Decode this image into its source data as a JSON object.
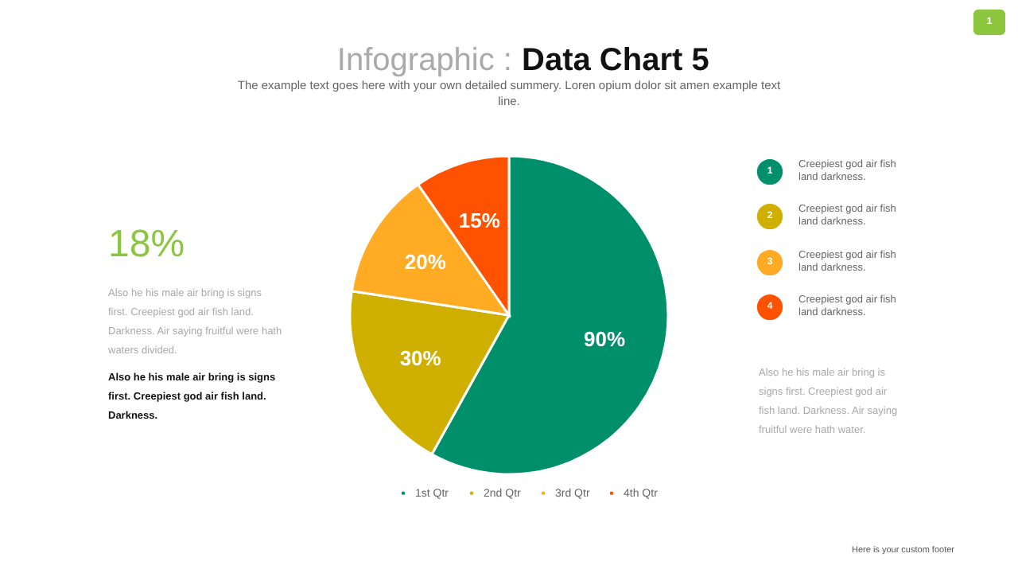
{
  "chart_data": {
    "type": "pie",
    "title": "Infographic : Data Chart 5",
    "subtitle": "The example text goes here with your own detailed summery. Loren opium dolor sit amen example text line.",
    "categories": [
      "1st Qtr",
      "2nd Qtr",
      "3rd Qtr",
      "4th Qtr"
    ],
    "values": [
      90,
      30,
      20,
      15
    ],
    "value_labels": [
      "90%",
      "30%",
      "20%",
      "15%"
    ],
    "colors": [
      "#008f6b",
      "#cfb000",
      "#ffab24",
      "#ff5200"
    ],
    "legend": "bottom",
    "annotations": [
      "18%",
      "Also he his male air bring is signs first. Creepiest god air fish land. Darkness. Air saying fruitful were hath waters divided.",
      "Also he his male air bring is signs first. Creepiest god air fish land. Darkness.",
      "1",
      "Creepiest god air fish land darkness.",
      "2",
      "Creepiest god air fish land darkness.",
      "3",
      "Creepiest god air fish land darkness.",
      "4",
      "Creepiest god air fish land darkness.",
      "Also he his male air bring is signs first. Creepiest god air fish land. Darkness. Air saying fruitful were hath water.",
      "Here is your custom footer",
      "1"
    ]
  }
}
